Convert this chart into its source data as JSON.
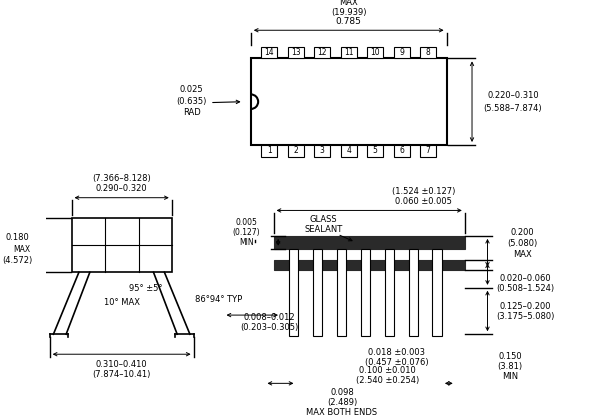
{
  "bg_color": "#ffffff",
  "line_color": "#000000",
  "text_color": "#000000",
  "fig_width": 6.0,
  "fig_height": 4.15,
  "dpi": 100,
  "labels": {
    "width_top": "0.785",
    "width_top2": "(19.939)",
    "width_top3": "MAX",
    "height_right": "0.220–0.310",
    "height_right2": "(5.588–7.874)",
    "rad": "0.025",
    "rad2": "(0.635)",
    "rad3": "RAD",
    "pkg_width": "0.290–0.320",
    "pkg_width2": "(7.366–8.128)",
    "pkg_height": "0.180",
    "pkg_height2": "MAX",
    "pkg_height3": "(4.572)",
    "angle1": "95° ±5°",
    "angle2": "10° MAX",
    "bot_width": "0.310–0.410",
    "bot_width2": "(7.874–10.41)",
    "dim005": "0.005",
    "dim005b": "(0.127)",
    "dim005c": "MIN",
    "glass1": "GLASS",
    "glass2": "SEALANT",
    "dim060": "0.060 ±0.005",
    "dim060b": "(1.524 ±0.127)",
    "dim200": "0.200",
    "dim200b": "(5.080)",
    "dim200c": "MAX",
    "dim020": "0.020–0.060",
    "dim020b": "(0.508–1.524)",
    "dim125": "0.125–0.200",
    "dim125b": "(3.175–5.080)",
    "dim150": "0.150",
    "dim150b": "(3.81)",
    "dim150c": "MIN",
    "dim018": "0.018 ±0.003",
    "dim018b": "(0.457 ±0.076)",
    "dim100": "0.100 ±0.010",
    "dim100b": "(2.540 ±0.254)",
    "angle_typ": "86°94° TYP",
    "dim008": "0.008–0.012",
    "dim008b": "(0.203–0.305)",
    "dim098": "0.098",
    "dim098b": "(2.489)",
    "dim098c": "MAX BOTH ENDS",
    "pins_top": [
      14,
      13,
      12,
      11,
      10,
      9,
      8
    ],
    "pins_bot": [
      1,
      2,
      3,
      4,
      5,
      6,
      7
    ]
  }
}
